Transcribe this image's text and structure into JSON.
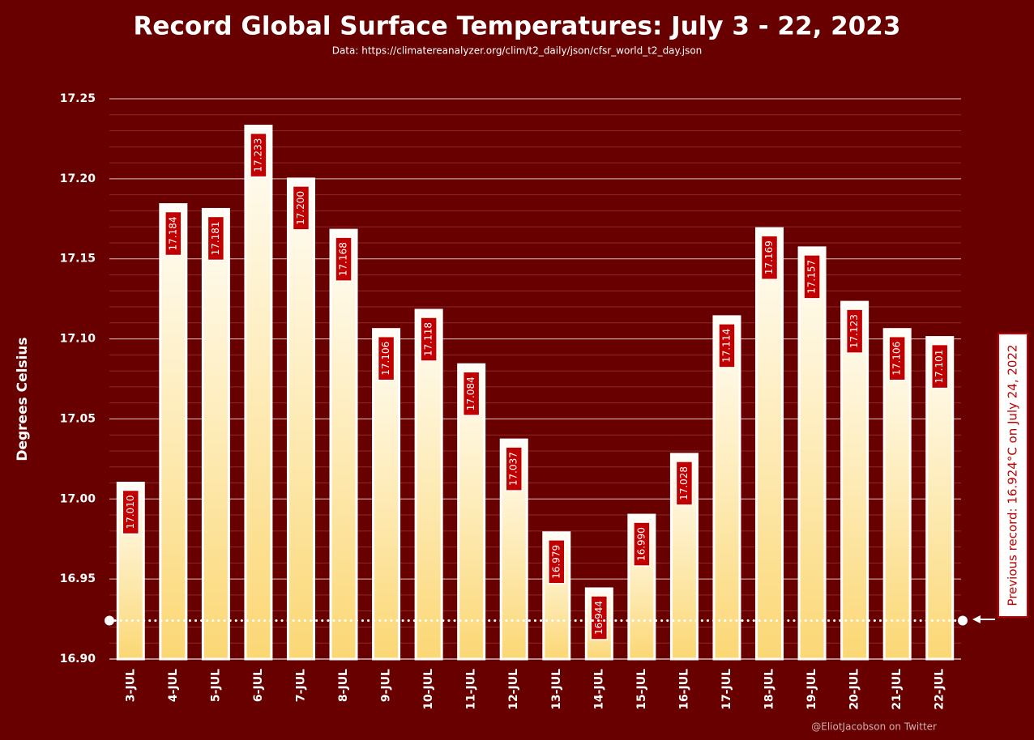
{
  "chart_data": {
    "type": "bar",
    "title": "Record Global Surface Temperatures: July 3 - 22, 2023",
    "subtitle": "Data: https://climatereanalyzer.org/clim/t2_daily/json/cfsr_world_t2_day.json",
    "y_label": "Degrees Celsius",
    "credit": "@EliotJacobson on Twitter",
    "categories": [
      "3-JUL",
      "4-JUL",
      "5-JUL",
      "6-JUL",
      "7-JUL",
      "8-JUL",
      "9-JUL",
      "10-JUL",
      "11-JUL",
      "12-JUL",
      "13-JUL",
      "14-JUL",
      "15-JUL",
      "16-JUL",
      "17-JUL",
      "18-JUL",
      "19-JUL",
      "20-JUL",
      "21-JUL",
      "22-JUL"
    ],
    "values": [
      17.01,
      17.184,
      17.181,
      17.233,
      17.2,
      17.168,
      17.106,
      17.118,
      17.084,
      17.037,
      16.979,
      16.944,
      16.99,
      17.028,
      17.114,
      17.169,
      17.157,
      17.123,
      17.106,
      17.101
    ],
    "value_labels": [
      "17.010",
      "17.184",
      "17.181",
      "17.233",
      "17.200",
      "17.168",
      "17.106",
      "17.118",
      "17.084",
      "17.037",
      "16.979",
      "16.944",
      "16.990",
      "17.028",
      "17.114",
      "17.169",
      "17.157",
      "17.123",
      "17.106",
      "17.101"
    ],
    "color": "#fbd774",
    "ylim": [
      16.9,
      17.25
    ],
    "yticks": [
      {
        "value": 16.9,
        "label": "16.90"
      },
      16.95,
      {
        "value": 17.0,
        "label": "17.00"
      },
      17.05,
      {
        "value": 17.1,
        "label": "17.10"
      },
      17.15,
      {
        "value": 17.2,
        "label": "17.20"
      },
      17.25
    ],
    "grid": true,
    "reference_line": {
      "value": 16.924,
      "label": "Previous record: 16.924°C on July 24, 2022"
    }
  }
}
